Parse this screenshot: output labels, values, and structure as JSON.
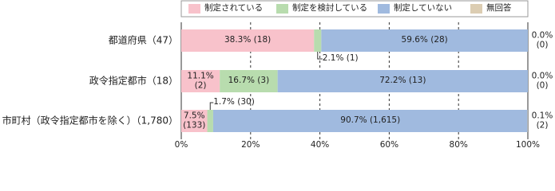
{
  "chart_data": {
    "type": "stacked-bar",
    "orientation": "horizontal",
    "categories": [
      "都道府県（47）",
      "政令指定都市（18）",
      "市町村（政令指定都市を除く）（1,780）"
    ],
    "series": [
      {
        "name": "制定されている",
        "color": "#f8c2cb",
        "values": [
          38.3,
          11.1,
          7.5
        ],
        "value_labels": [
          "38.3% (18)",
          "11.1%\n(2)",
          "7.5%\n(133)"
        ]
      },
      {
        "name": "制定を検討している",
        "color": "#b8dcae",
        "values": [
          2.1,
          16.7,
          1.7
        ],
        "value_labels": [
          "2.1% (1)",
          "16.7% (3)",
          "1.7% (30)"
        ]
      },
      {
        "name": "制定していない",
        "color": "#a0badf",
        "values": [
          59.6,
          72.2,
          90.7
        ],
        "value_labels": [
          "59.6% (28)",
          "72.2% (13)",
          "90.7% (1,615)"
        ]
      },
      {
        "name": "無回答",
        "color": "#dccdb2",
        "values": [
          0.0,
          0.0,
          0.1
        ],
        "value_labels": [
          "0.0%\n(0)",
          "0.0%\n(0)",
          "0.1%\n(2)"
        ]
      }
    ],
    "xlim": [
      0,
      100
    ],
    "xticks": [
      {
        "value": 0,
        "label": "0%"
      },
      {
        "value": 20,
        "label": "20%"
      },
      {
        "value": 40,
        "label": "40%"
      },
      {
        "value": 60,
        "label": "60%"
      },
      {
        "value": 80,
        "label": "80%"
      },
      {
        "value": 100,
        "label": "100%"
      }
    ],
    "grid": true,
    "legend": "top"
  }
}
